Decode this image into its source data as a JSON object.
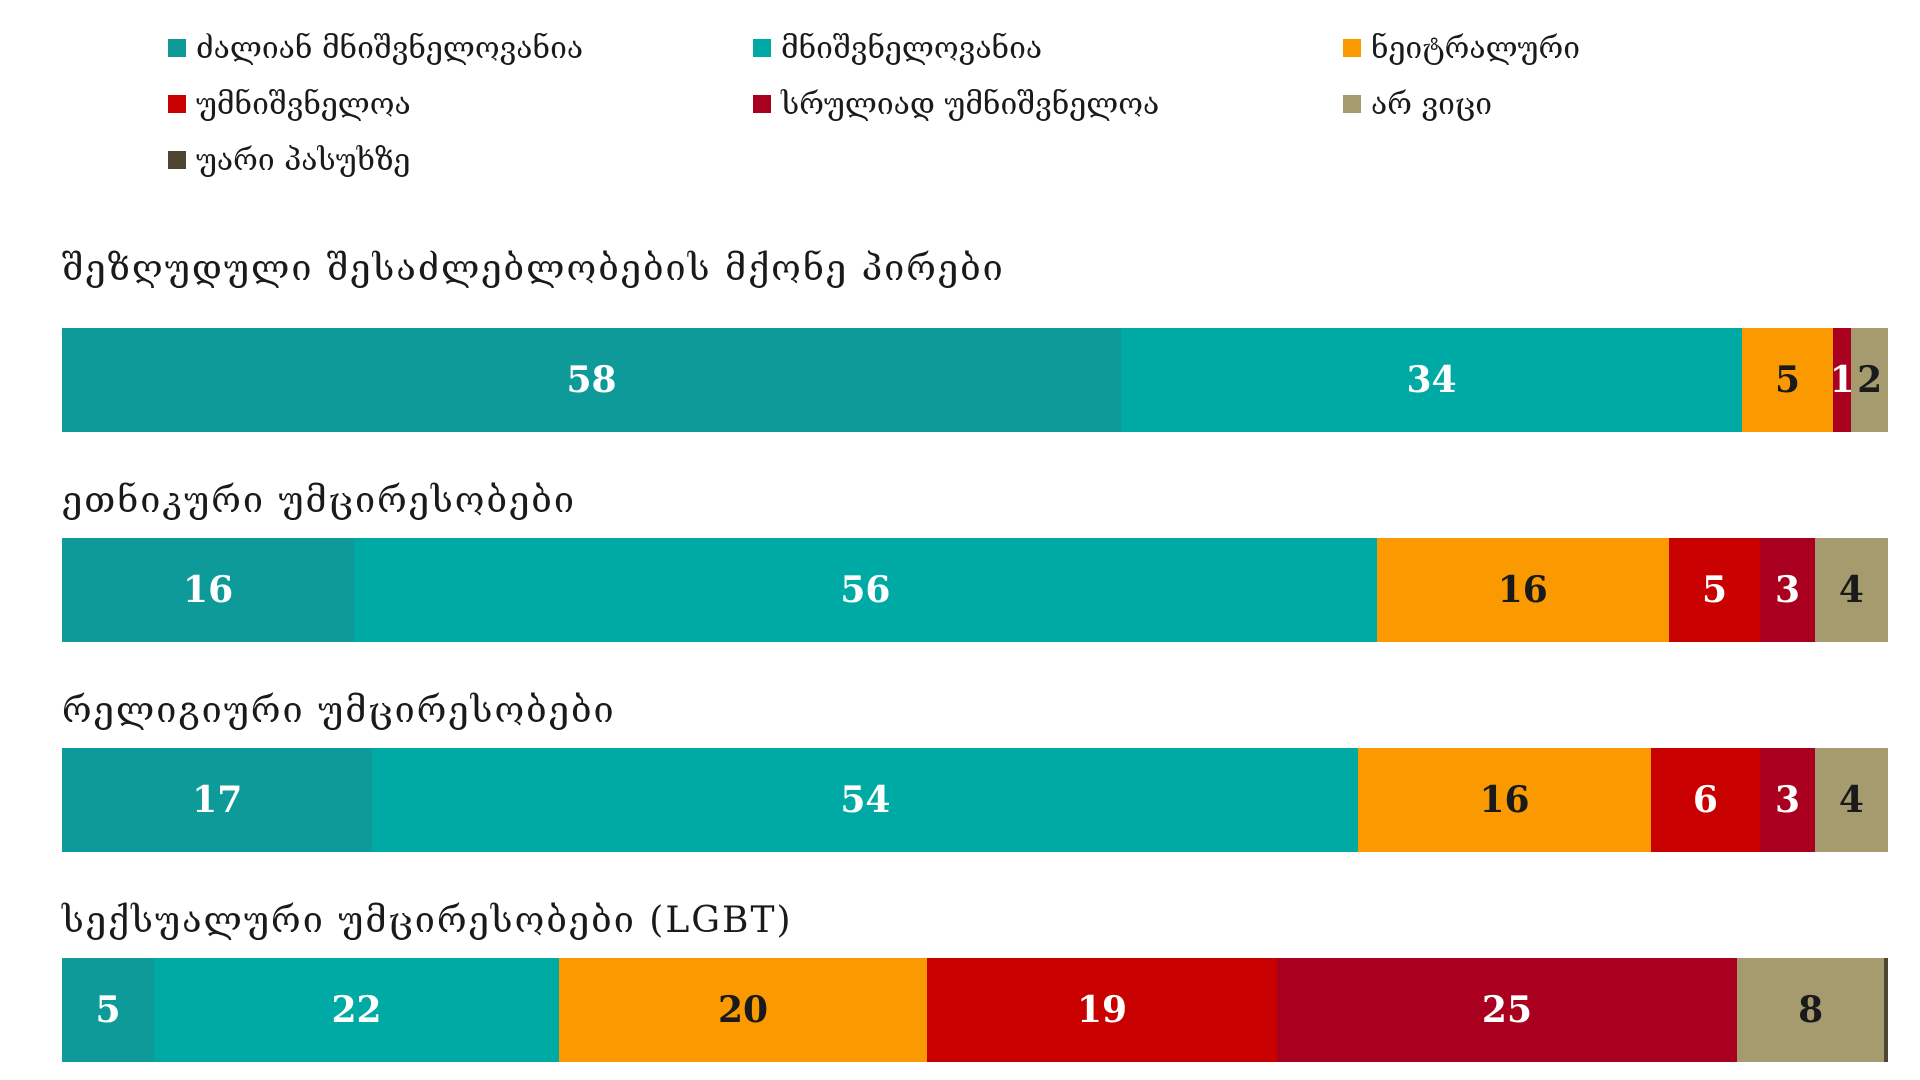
{
  "chart_data": {
    "type": "bar",
    "orientation": "horizontal-stacked",
    "title": "",
    "xlabel": "",
    "ylabel": "",
    "xlim": [
      0,
      100
    ],
    "legend_position": "top",
    "grid": false,
    "legend": [
      {
        "name": "ძალიან მნიშვნელოვანია",
        "color": "#0e9a98"
      },
      {
        "name": "მნიშვნელოვანია",
        "color": "#00aaa4"
      },
      {
        "name": "ნეიტრალური",
        "color": "#fa9a00"
      },
      {
        "name": "უმნიშვნელოა",
        "color": "#c80000"
      },
      {
        "name": "სრულიად უმნიშვნელოა",
        "color": "#a8001e"
      },
      {
        "name": "არ ვიცი",
        "color": "#a69b6f"
      },
      {
        "name": "უარი პასუხზე",
        "color": "#4d4632"
      }
    ],
    "categories": [
      "შეზღუდული შესაძლებლობების მქონე პირები",
      "ეთნიკური უმცირესობები",
      "რელიგიური უმცირესობები",
      "სექსუალური უმცირესობები (LGBT)"
    ],
    "rows": [
      {
        "values": [
          58,
          34,
          5,
          0,
          1,
          2,
          0
        ],
        "labels": [
          "58",
          "34",
          "5",
          "",
          "1",
          "2",
          ""
        ]
      },
      {
        "values": [
          16,
          56,
          16,
          5,
          3,
          4,
          0
        ],
        "labels": [
          "16",
          "56",
          "16",
          "5",
          "3",
          "4",
          ""
        ]
      },
      {
        "values": [
          17,
          54,
          16,
          6,
          3,
          4,
          0
        ],
        "labels": [
          "17",
          "54",
          "16",
          "6",
          "3",
          "4",
          ""
        ]
      },
      {
        "values": [
          5,
          22,
          20,
          19,
          25,
          8,
          0.2
        ],
        "labels": [
          "5",
          "22",
          "20",
          "19",
          "25",
          "8",
          ""
        ]
      }
    ]
  }
}
